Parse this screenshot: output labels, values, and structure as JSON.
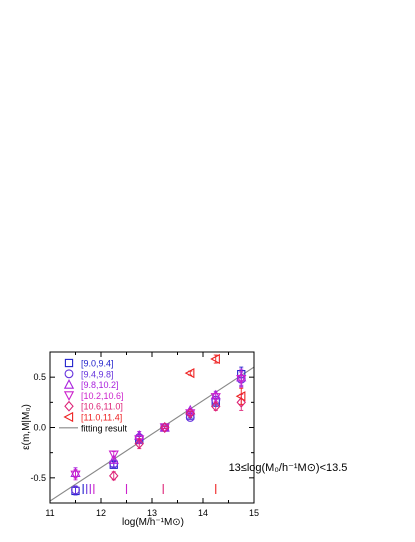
{
  "chart_data": {
    "type": "scatter",
    "xlabel": "log(M/h⁻¹M⊙)",
    "ylabel": "ε(m,M|M₀)",
    "annotation": "13≤log(M₀/h⁻¹M⊙)<13.5",
    "xlim": [
      11,
      15
    ],
    "ylim": [
      -0.75,
      0.75
    ],
    "xticks": [
      11,
      12,
      13,
      14,
      15
    ],
    "yticks": [
      -0.5,
      0.0,
      0.5
    ],
    "ytick_labels": [
      "-0.5",
      "0.0",
      "0.5"
    ],
    "grid": false,
    "legend_position": "top-left",
    "series": [
      {
        "name": "[9.0,9.4]",
        "marker": "square",
        "color": "#2222cc",
        "x": [
          11.5,
          12.25,
          12.75,
          13.25,
          13.75,
          14.25,
          14.75
        ],
        "y": [
          -0.63,
          -0.37,
          -0.12,
          0.0,
          0.12,
          0.25,
          0.53
        ],
        "err": [
          0.04,
          0.03,
          0.03,
          0.01,
          0.02,
          0.04,
          0.07
        ]
      },
      {
        "name": "[9.4,9.8]",
        "marker": "circle",
        "color": "#6633dd",
        "x": [
          11.5,
          12.25,
          12.75,
          13.25,
          13.75,
          14.25,
          14.75
        ],
        "y": [
          -0.62,
          -0.36,
          -0.1,
          0.0,
          0.1,
          0.27,
          0.48
        ],
        "err": [
          0.04,
          0.03,
          0.03,
          0.01,
          0.02,
          0.04,
          0.07
        ]
      },
      {
        "name": "[9.8,10.2]",
        "marker": "triangle-up",
        "color": "#aa22dd",
        "x": [
          11.5,
          12.25,
          12.75,
          13.25,
          13.75,
          14.25,
          14.75
        ],
        "y": [
          -0.45,
          -0.32,
          -0.08,
          0.0,
          0.17,
          0.32,
          0.5
        ],
        "err": [
          0.05,
          0.03,
          0.04,
          0.01,
          0.02,
          0.04,
          0.08
        ]
      },
      {
        "name": "[10.2,10.6]",
        "marker": "triangle-down",
        "color": "#cc22cc",
        "x": [
          11.5,
          12.25,
          12.75,
          13.25,
          13.75,
          14.25,
          14.75
        ],
        "y": [
          -0.47,
          -0.27,
          -0.12,
          0.0,
          0.14,
          0.3,
          0.48
        ],
        "err": [
          0.05,
          0.03,
          0.04,
          0.01,
          0.02,
          0.04,
          0.08
        ]
      },
      {
        "name": "[10.6,11.0]",
        "marker": "diamond",
        "color": "#dd2277",
        "x": [
          12.25,
          12.75,
          13.25,
          13.75,
          14.25,
          14.75
        ],
        "y": [
          -0.48,
          -0.16,
          0.0,
          0.14,
          0.21,
          0.25
        ],
        "err": [
          0.04,
          0.05,
          0.01,
          0.02,
          0.04,
          0.08
        ]
      },
      {
        "name": "[11.0,11.4]",
        "marker": "triangle-left",
        "color": "#ee2222",
        "x": [
          13.75,
          14.25,
          14.75
        ],
        "y": [
          0.54,
          0.68,
          0.31
        ],
        "err": [
          0.02,
          0.04,
          0.08
        ]
      }
    ],
    "fit_line": {
      "name": "fitting result",
      "color": "#888888",
      "x": [
        11,
        15
      ],
      "y": [
        -0.73,
        0.6
      ]
    },
    "bottom_ticks": [
      {
        "x": 11.65,
        "color": "#2222cc"
      },
      {
        "x": 11.72,
        "color": "#6633dd"
      },
      {
        "x": 11.79,
        "color": "#aa22dd"
      },
      {
        "x": 11.86,
        "color": "#cc22cc"
      },
      {
        "x": 12.5,
        "color": "#cc22cc"
      },
      {
        "x": 13.22,
        "color": "#dd2277"
      },
      {
        "x": 14.25,
        "color": "#ee2222"
      }
    ]
  }
}
